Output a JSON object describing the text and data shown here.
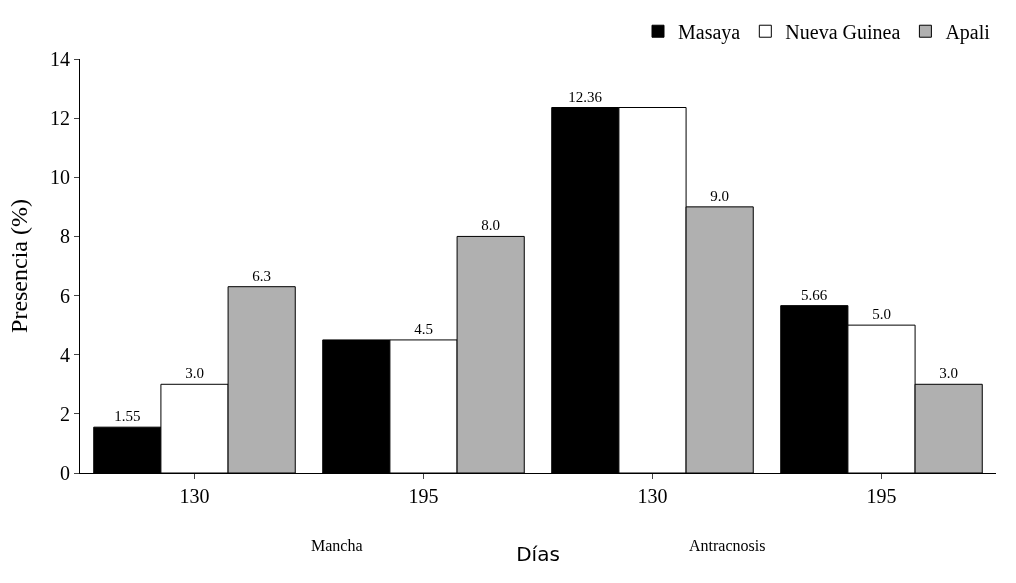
{
  "chart_data": {
    "type": "bar",
    "xlabel": "Días",
    "ylabel": "Presencia (%)",
    "categories": [
      "130",
      "195",
      "130",
      "195"
    ],
    "series": [
      {
        "name": "Masaya",
        "color": "#000000",
        "values": [
          1.55,
          4.5,
          12.36,
          5.66
        ],
        "value_labels": [
          "1.55",
          null,
          "12.36",
          "5.66"
        ]
      },
      {
        "name": "Nueva Guinea",
        "color": "#ffffff",
        "values": [
          3.0,
          4.5,
          12.36,
          5.0
        ],
        "value_labels": [
          "3.0",
          "4.5",
          null,
          "5.0"
        ]
      },
      {
        "name": "Apali",
        "color": "#b0b0b0",
        "values": [
          6.3,
          8.0,
          9.0,
          3.0
        ],
        "value_labels": [
          "6.3",
          "8.0",
          "9.0",
          "3.0"
        ]
      }
    ],
    "annotations": [
      "Mancha",
      "Antracnosis"
    ],
    "ylim": [
      0,
      14
    ],
    "yticks": [
      0,
      2,
      4,
      6,
      8,
      10,
      12,
      14
    ],
    "grid": false,
    "legend": "top right"
  }
}
